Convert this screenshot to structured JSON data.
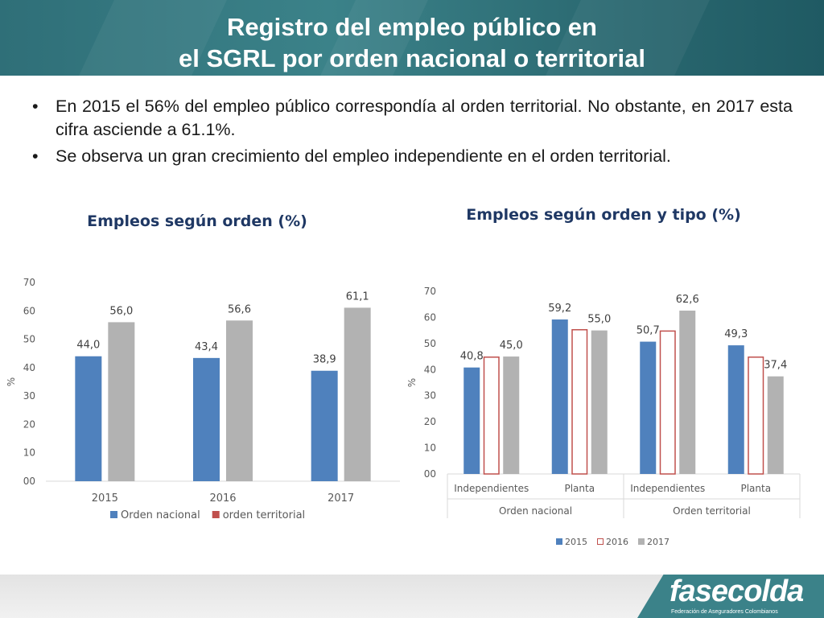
{
  "slide": {
    "title_line1": "Registro del empleo público en",
    "title_line2": "el SGRL por orden nacional o territorial",
    "bullets": [
      "En 2015 el  56% del empleo público correspondía al orden territorial. No obstante, en 2017 esta cifra asciende a 61.1%.",
      "Se observa un gran crecimiento del empleo independiente en el orden territorial."
    ],
    "bullet_glyph": "•"
  },
  "colors": {
    "header": "#2f6f78",
    "blue": "#4f81bd",
    "red": "#c0504d",
    "gray": "#b2b2b2",
    "title_text": "#1f3864",
    "logo": "#3b8289"
  },
  "chart_data": [
    {
      "type": "bar",
      "title": "Empleos según orden (%)",
      "ylabel": "%",
      "ylim": [
        0,
        70
      ],
      "yticks": [
        "00",
        "10",
        "20",
        "30",
        "40",
        "50",
        "60",
        "70"
      ],
      "categories": [
        "2015",
        "2016",
        "2017"
      ],
      "series": [
        {
          "name": "Orden nacional",
          "values": [
            44.0,
            43.4,
            38.9
          ],
          "labels": [
            "44,0",
            "43,4",
            "38,9"
          ],
          "color": "#4f81bd"
        },
        {
          "name": "orden territorial",
          "values": [
            56.0,
            56.6,
            61.1
          ],
          "labels": [
            "56,0",
            "56,6",
            "61,1"
          ],
          "color": "#b2b2b2",
          "legend_color": "#c0504d"
        }
      ],
      "legend": "bottom",
      "grid": false
    },
    {
      "type": "bar",
      "title": "Empleos según orden  y tipo (%)",
      "ylabel": "%",
      "ylim": [
        0,
        70
      ],
      "yticks": [
        "00",
        "10",
        "20",
        "30",
        "40",
        "50",
        "60",
        "70"
      ],
      "categories": [
        "Independientes",
        "Planta",
        "Independientes",
        "Planta"
      ],
      "groups": [
        "Orden nacional",
        "Orden territorial"
      ],
      "series": [
        {
          "name": "2015",
          "values": [
            40.8,
            59.2,
            50.7,
            49.3
          ],
          "labels": [
            "40,8",
            "59,2",
            "50,7",
            "49,3"
          ],
          "style": "fill",
          "color": "#4f81bd"
        },
        {
          "name": "2016",
          "values": [
            45.0,
            55.5,
            55.0,
            45.0
          ],
          "labels": [
            "",
            "",
            "",
            ""
          ],
          "style": "outline",
          "color": "#c0504d"
        },
        {
          "name": "2017",
          "values": [
            45.0,
            55.0,
            62.6,
            37.4
          ],
          "labels": [
            "45,0",
            "55,0",
            "62,6",
            "37,4"
          ],
          "style": "fill",
          "color": "#b2b2b2"
        }
      ],
      "legend": "bottom",
      "grid": false
    }
  ],
  "footer": {
    "logo_text": "fasecolda",
    "logo_subtitle": "Federación de Aseguradores Colombianos"
  }
}
